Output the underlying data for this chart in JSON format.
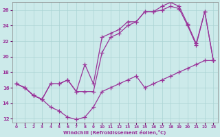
{
  "xlabel": "Windchill (Refroidissement éolien,°C)",
  "bg_color": "#cceaea",
  "line_color": "#993399",
  "grid_color": "#aad4d4",
  "xlim": [
    -0.5,
    23.5
  ],
  "ylim": [
    11.5,
    27.0
  ],
  "yticks": [
    12,
    14,
    16,
    18,
    20,
    22,
    24,
    26
  ],
  "xticks": [
    0,
    1,
    2,
    3,
    4,
    5,
    6,
    7,
    8,
    9,
    10,
    11,
    12,
    13,
    14,
    15,
    16,
    17,
    18,
    19,
    20,
    21,
    22,
    23
  ],
  "line_bottom_x": [
    0,
    1,
    2,
    3,
    4,
    5,
    6,
    7,
    8,
    9,
    10,
    11,
    12,
    13,
    14,
    15,
    16,
    17,
    18,
    19,
    20,
    21,
    22,
    23
  ],
  "line_bottom_y": [
    16.5,
    16.0,
    15.0,
    14.5,
    13.5,
    13.0,
    12.2,
    11.9,
    12.2,
    13.5,
    15.5,
    16.0,
    16.5,
    17.0,
    17.5,
    16.0,
    16.5,
    17.0,
    17.5,
    18.0,
    18.5,
    19.0,
    19.5,
    19.5
  ],
  "line_mid_x": [
    0,
    1,
    2,
    3,
    4,
    5,
    6,
    7,
    8,
    9,
    10,
    11,
    12,
    13,
    14,
    15,
    16,
    17,
    18,
    19,
    20,
    21,
    22,
    23
  ],
  "line_mid_y": [
    16.5,
    16.0,
    15.0,
    14.5,
    16.5,
    16.5,
    17.0,
    15.5,
    15.5,
    15.5,
    20.5,
    22.5,
    23.0,
    24.0,
    24.5,
    25.8,
    25.8,
    26.0,
    26.5,
    26.2,
    24.0,
    21.5,
    25.8,
    19.5
  ],
  "line_top_x": [
    0,
    1,
    2,
    3,
    4,
    5,
    6,
    7,
    8,
    9,
    10,
    11,
    12,
    13,
    14,
    15,
    16,
    17,
    18,
    19,
    20,
    21,
    22,
    23
  ],
  "line_top_y": [
    16.5,
    16.0,
    15.0,
    14.5,
    16.5,
    16.5,
    17.0,
    15.5,
    19.0,
    16.5,
    22.5,
    23.0,
    23.5,
    24.5,
    24.5,
    25.8,
    25.8,
    26.5,
    27.0,
    26.5,
    24.2,
    21.7,
    25.8,
    19.5
  ]
}
